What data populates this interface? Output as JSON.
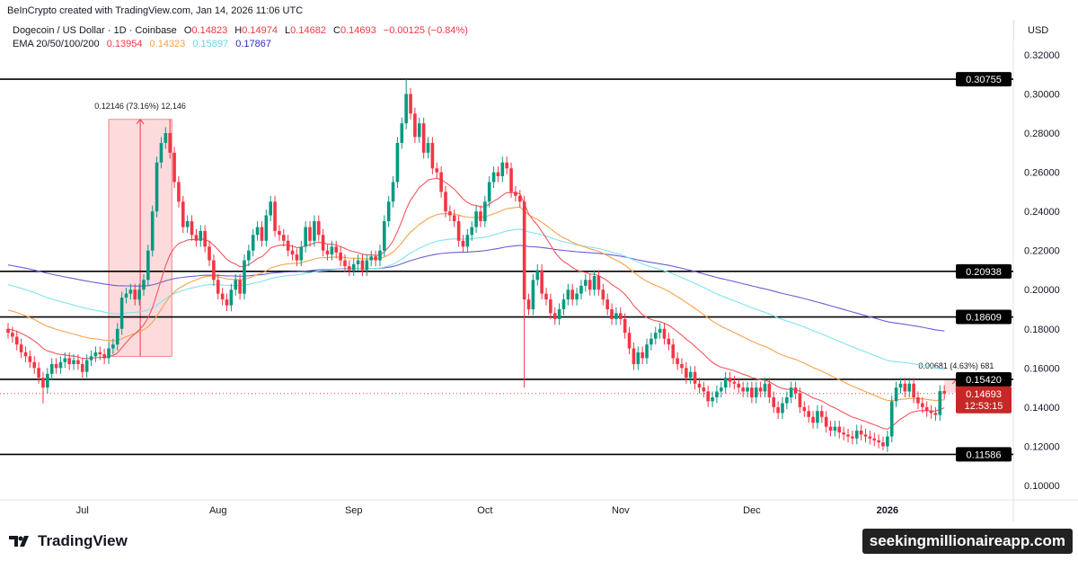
{
  "credit": "BeInCrypto created with TradingView.com, Jan 14, 2026 11:06 UTC",
  "legend": {
    "symbol": "Dogecoin / US Dollar · 1D · Coinbase",
    "o_label": "O",
    "o": "0.14823",
    "h_label": "H",
    "h": "0.14974",
    "l_label": "L",
    "l": "0.14682",
    "c_label": "C",
    "c": "0.14693",
    "change": "−0.00125 (−0.84%)",
    "ema_label": "EMA 20/50/100/200",
    "ema20": "0.13954",
    "ema50": "0.14323",
    "ema100": "0.15897",
    "ema200": "0.17867"
  },
  "currency": "USD",
  "brand": "TradingView",
  "watermark": "seekingmillionaireapp.com",
  "colors": {
    "up": "#089981",
    "down": "#f23645",
    "ema20": "#f0575c",
    "ema50": "#f7a24b",
    "ema100": "#7fe3f0",
    "ema200": "#6a5fd3"
  },
  "chart_data": {
    "type": "candlestick",
    "interval": "1D",
    "x_start": "2025-06-14",
    "ylim": [
      0.09,
      0.33
    ],
    "y_ticks": [
      "0.10000",
      "0.12000",
      "0.14000",
      "0.16000",
      "0.18000",
      "0.20000",
      "0.22000",
      "0.24000",
      "0.26000",
      "0.28000",
      "0.30000",
      "0.32000"
    ],
    "x_ticks": [
      {
        "label": "Jul",
        "date": "2025-07-01"
      },
      {
        "label": "Aug",
        "date": "2025-08-01"
      },
      {
        "label": "Sep",
        "date": "2025-09-01"
      },
      {
        "label": "Oct",
        "date": "2025-10-01"
      },
      {
        "label": "Nov",
        "date": "2025-11-01"
      },
      {
        "label": "Dec",
        "date": "2025-12-01"
      },
      {
        "label": "2026",
        "date": "2026-01-01",
        "bold": true
      }
    ],
    "close": [
      0.178,
      0.176,
      0.172,
      0.168,
      0.166,
      0.163,
      0.16,
      0.155,
      0.15,
      0.157,
      0.162,
      0.16,
      0.163,
      0.165,
      0.162,
      0.164,
      0.162,
      0.158,
      0.164,
      0.166,
      0.168,
      0.167,
      0.165,
      0.17,
      0.172,
      0.18,
      0.196,
      0.198,
      0.2,
      0.195,
      0.2,
      0.205,
      0.22,
      0.24,
      0.265,
      0.275,
      0.28,
      0.27,
      0.255,
      0.245,
      0.232,
      0.235,
      0.228,
      0.225,
      0.23,
      0.222,
      0.215,
      0.205,
      0.198,
      0.195,
      0.192,
      0.2,
      0.205,
      0.198,
      0.215,
      0.22,
      0.228,
      0.232,
      0.225,
      0.238,
      0.245,
      0.23,
      0.228,
      0.225,
      0.22,
      0.218,
      0.215,
      0.222,
      0.232,
      0.225,
      0.235,
      0.228,
      0.22,
      0.218,
      0.222,
      0.219,
      0.215,
      0.212,
      0.21,
      0.213,
      0.215,
      0.21,
      0.215,
      0.217,
      0.215,
      0.22,
      0.235,
      0.245,
      0.255,
      0.275,
      0.285,
      0.3,
      0.29,
      0.278,
      0.285,
      0.27,
      0.275,
      0.262,
      0.26,
      0.25,
      0.24,
      0.238,
      0.235,
      0.225,
      0.222,
      0.228,
      0.232,
      0.24,
      0.235,
      0.245,
      0.255,
      0.26,
      0.258,
      0.265,
      0.262,
      0.25,
      0.248,
      0.245,
      0.195,
      0.19,
      0.205,
      0.21,
      0.198,
      0.195,
      0.188,
      0.185,
      0.19,
      0.195,
      0.2,
      0.195,
      0.198,
      0.202,
      0.205,
      0.2,
      0.207,
      0.2,
      0.195,
      0.19,
      0.185,
      0.188,
      0.185,
      0.178,
      0.17,
      0.162,
      0.168,
      0.165,
      0.172,
      0.175,
      0.178,
      0.18,
      0.175,
      0.172,
      0.165,
      0.162,
      0.16,
      0.155,
      0.158,
      0.152,
      0.15,
      0.148,
      0.143,
      0.145,
      0.148,
      0.15,
      0.155,
      0.153,
      0.152,
      0.15,
      0.148,
      0.15,
      0.145,
      0.15,
      0.148,
      0.152,
      0.145,
      0.14,
      0.137,
      0.142,
      0.145,
      0.15,
      0.147,
      0.14,
      0.138,
      0.135,
      0.132,
      0.138,
      0.135,
      0.13,
      0.128,
      0.13,
      0.127,
      0.126,
      0.125,
      0.124,
      0.128,
      0.126,
      0.125,
      0.124,
      0.123,
      0.122,
      0.12,
      0.125,
      0.143,
      0.15,
      0.152,
      0.148,
      0.152,
      0.145,
      0.142,
      0.14,
      0.138,
      0.137,
      0.136,
      0.1482,
      0.14693
    ],
    "wick_extremes": [
      {
        "date": "2025-06-22",
        "low": 0.142
      },
      {
        "date": "2025-07-21",
        "high": 0.287
      },
      {
        "date": "2025-09-13",
        "high": 0.3075
      },
      {
        "date": "2025-10-10",
        "low": 0.15
      },
      {
        "date": "2025-12-31",
        "low": 0.118
      }
    ],
    "ema_start": {
      "ema20": 0.18,
      "ema50": 0.19,
      "ema100": 0.203,
      "ema200": 0.213
    },
    "levels": [
      {
        "value": 0.30755,
        "label": "0.30755"
      },
      {
        "value": 0.20938,
        "label": "0.20938"
      },
      {
        "value": 0.18609,
        "label": "0.18609"
      },
      {
        "value": 0.1542,
        "label": "0.15420"
      },
      {
        "value": 0.11586,
        "label": "0.11586"
      }
    ],
    "last_price": {
      "value": 0.14693,
      "label": "0.14693",
      "countdown": "12:53:15"
    },
    "measures": [
      {
        "from": "2025-07-07",
        "to": "2025-07-21",
        "low": 0.166,
        "high": 0.287,
        "label": "0.12146 (73.16%) 12,146"
      },
      {
        "from": "2026-01-14",
        "to": "2026-01-19",
        "low": 0.1474,
        "high": 0.1542,
        "label": "0.00681 (4.63%) 681"
      }
    ]
  }
}
